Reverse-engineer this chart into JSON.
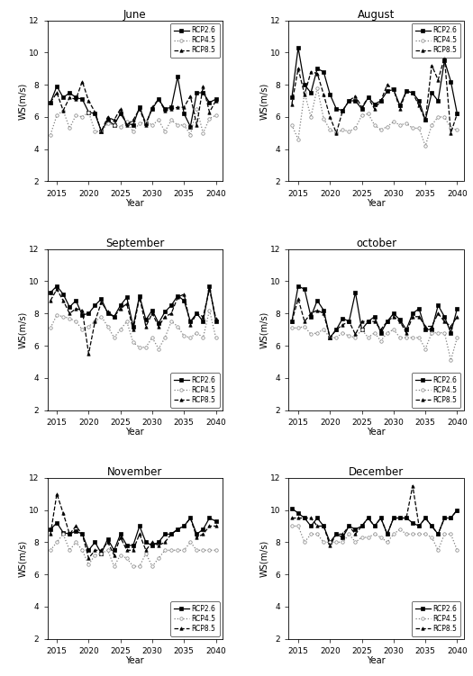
{
  "titles": [
    "June",
    "August",
    "September",
    "october",
    "November",
    "December"
  ],
  "years": [
    2014,
    2015,
    2016,
    2017,
    2018,
    2019,
    2020,
    2021,
    2022,
    2023,
    2024,
    2025,
    2026,
    2027,
    2028,
    2029,
    2030,
    2031,
    2032,
    2033,
    2034,
    2035,
    2036,
    2037,
    2038,
    2039,
    2040
  ],
  "june": {
    "rcp26": [
      6.9,
      7.9,
      7.2,
      7.5,
      7.2,
      7.1,
      6.3,
      6.2,
      5.1,
      5.8,
      5.5,
      6.2,
      5.6,
      5.5,
      6.6,
      5.6,
      6.5,
      7.1,
      6.5,
      6.6,
      8.5,
      6.2,
      5.4,
      7.5,
      7.5,
      6.9,
      7.1
    ],
    "rcp45": [
      4.9,
      6.1,
      6.4,
      5.3,
      6.1,
      6.0,
      6.3,
      5.1,
      5.1,
      5.6,
      5.5,
      5.4,
      5.7,
      5.1,
      5.6,
      5.7,
      5.5,
      5.8,
      5.1,
      5.8,
      5.5,
      5.5,
      4.9,
      6.5,
      5.0,
      5.9,
      6.1
    ],
    "rcp85": [
      6.9,
      7.5,
      6.4,
      7.2,
      7.1,
      8.2,
      7.0,
      6.3,
      5.1,
      6.0,
      5.8,
      6.5,
      5.5,
      5.8,
      6.5,
      5.5,
      6.6,
      7.1,
      6.4,
      6.5,
      6.6,
      6.6,
      7.3,
      5.5,
      7.9,
      6.3,
      7.0
    ]
  },
  "august": {
    "rcp26": [
      7.2,
      10.3,
      8.0,
      7.5,
      9.0,
      8.8,
      7.4,
      6.5,
      6.4,
      7.0,
      7.0,
      6.5,
      7.2,
      6.8,
      7.0,
      7.6,
      7.7,
      6.7,
      7.6,
      7.5,
      7.0,
      5.8,
      7.5,
      7.0,
      9.5,
      8.2,
      6.2
    ],
    "rcp45": [
      5.5,
      4.6,
      7.5,
      6.0,
      7.8,
      5.9,
      5.2,
      5.0,
      5.2,
      5.1,
      5.3,
      6.1,
      6.2,
      5.5,
      5.2,
      5.4,
      5.7,
      5.5,
      5.6,
      5.3,
      5.3,
      4.2,
      5.5,
      6.0,
      6.0,
      5.3,
      5.2
    ],
    "rcp85": [
      6.8,
      9.0,
      7.4,
      8.8,
      8.7,
      7.4,
      6.0,
      5.0,
      6.4,
      7.0,
      7.3,
      6.6,
      7.2,
      6.5,
      7.0,
      8.0,
      7.7,
      6.5,
      7.6,
      7.5,
      6.7,
      5.8,
      9.2,
      8.3,
      9.7,
      5.0,
      6.2
    ]
  },
  "september": {
    "rcp26": [
      9.3,
      9.7,
      9.2,
      8.4,
      8.8,
      7.9,
      8.0,
      8.5,
      8.9,
      8.0,
      7.8,
      8.5,
      9.0,
      7.2,
      9.1,
      7.6,
      8.2,
      7.4,
      8.1,
      8.5,
      9.1,
      8.8,
      7.5,
      8.0,
      7.5,
      9.7,
      7.5
    ],
    "rcp45": [
      7.1,
      7.9,
      7.8,
      7.7,
      7.5,
      7.0,
      7.2,
      7.5,
      7.8,
      7.2,
      6.5,
      7.0,
      7.5,
      6.2,
      5.9,
      5.9,
      6.5,
      5.8,
      6.5,
      7.5,
      7.2,
      6.6,
      6.5,
      6.8,
      6.5,
      8.2,
      6.5
    ],
    "rcp85": [
      8.8,
      9.5,
      8.8,
      8.0,
      8.3,
      8.2,
      5.5,
      7.5,
      8.7,
      8.1,
      7.8,
      8.3,
      8.6,
      7.0,
      9.0,
      7.2,
      8.0,
      7.2,
      7.8,
      8.0,
      9.0,
      9.2,
      7.3,
      8.0,
      7.8,
      9.5,
      7.7
    ]
  },
  "october": {
    "rcp26": [
      7.5,
      9.7,
      9.5,
      7.8,
      8.8,
      8.2,
      6.5,
      7.0,
      7.7,
      7.5,
      9.3,
      7.0,
      7.5,
      7.8,
      6.8,
      7.5,
      8.0,
      7.6,
      7.0,
      8.0,
      8.3,
      7.0,
      7.0,
      8.5,
      7.8,
      6.8,
      8.3
    ],
    "rcp45": [
      7.1,
      7.1,
      7.2,
      6.7,
      6.8,
      7.0,
      6.5,
      6.5,
      6.8,
      6.6,
      6.5,
      7.0,
      6.5,
      6.8,
      6.3,
      6.8,
      7.0,
      6.5,
      6.5,
      6.5,
      6.5,
      5.8,
      6.8,
      6.8,
      6.8,
      5.1,
      6.5
    ],
    "rcp85": [
      7.5,
      8.9,
      7.5,
      8.0,
      8.2,
      8.0,
      6.5,
      7.0,
      7.3,
      7.5,
      6.7,
      7.5,
      7.5,
      7.5,
      7.0,
      7.5,
      7.8,
      7.5,
      6.8,
      7.8,
      7.8,
      7.2,
      7.2,
      8.0,
      7.5,
      7.2,
      7.8
    ]
  },
  "november": {
    "rcp26": [
      8.8,
      9.2,
      8.6,
      8.5,
      8.7,
      8.5,
      7.5,
      8.0,
      7.3,
      8.2,
      7.5,
      8.5,
      7.8,
      7.8,
      9.0,
      8.0,
      7.8,
      8.0,
      8.5,
      8.5,
      8.8,
      9.0,
      9.5,
      8.5,
      8.8,
      9.5,
      9.3
    ],
    "rcp45": [
      7.5,
      8.0,
      8.5,
      7.5,
      8.0,
      7.5,
      6.6,
      7.2,
      7.3,
      7.5,
      6.5,
      7.2,
      7.0,
      6.5,
      6.5,
      7.3,
      6.5,
      7.0,
      7.5,
      7.5,
      7.5,
      7.5,
      8.0,
      7.5,
      7.5,
      7.5,
      7.5
    ],
    "rcp85": [
      8.5,
      11.0,
      9.8,
      8.5,
      9.0,
      8.5,
      7.0,
      7.5,
      7.5,
      8.0,
      7.2,
      8.3,
      7.5,
      7.5,
      8.5,
      7.5,
      8.0,
      7.8,
      8.0,
      8.5,
      8.8,
      9.0,
      9.5,
      8.3,
      8.5,
      9.0,
      9.0
    ]
  },
  "december": {
    "rcp26": [
      10.1,
      9.8,
      9.5,
      9.0,
      9.5,
      9.0,
      8.0,
      8.5,
      8.3,
      9.0,
      8.8,
      9.0,
      9.5,
      9.0,
      9.5,
      8.5,
      9.5,
      9.5,
      9.5,
      9.2,
      9.0,
      9.5,
      9.0,
      8.5,
      9.5,
      9.5,
      10.0
    ],
    "rcp45": [
      9.0,
      9.0,
      8.0,
      8.5,
      8.5,
      8.0,
      8.0,
      8.0,
      8.0,
      8.5,
      8.0,
      8.3,
      8.3,
      8.5,
      8.3,
      8.0,
      8.5,
      8.8,
      8.5,
      8.5,
      8.5,
      8.5,
      8.3,
      7.5,
      8.5,
      8.5,
      7.5
    ],
    "rcp85": [
      9.5,
      9.5,
      9.5,
      9.5,
      9.0,
      9.0,
      7.8,
      8.5,
      8.5,
      9.0,
      8.5,
      9.0,
      9.5,
      9.0,
      9.5,
      8.5,
      9.5,
      9.5,
      9.5,
      11.5,
      9.0,
      9.5,
      9.0,
      8.5,
      9.5,
      9.5,
      10.0
    ]
  },
  "xlabel": "Year",
  "ylabel": "WS(m/s)",
  "ylim": [
    2,
    12
  ],
  "yticks": [
    2,
    4,
    6,
    8,
    10,
    12
  ],
  "xticks": [
    2015,
    2020,
    2025,
    2030,
    2035,
    2040
  ],
  "xlim": [
    2013.5,
    2041
  ]
}
